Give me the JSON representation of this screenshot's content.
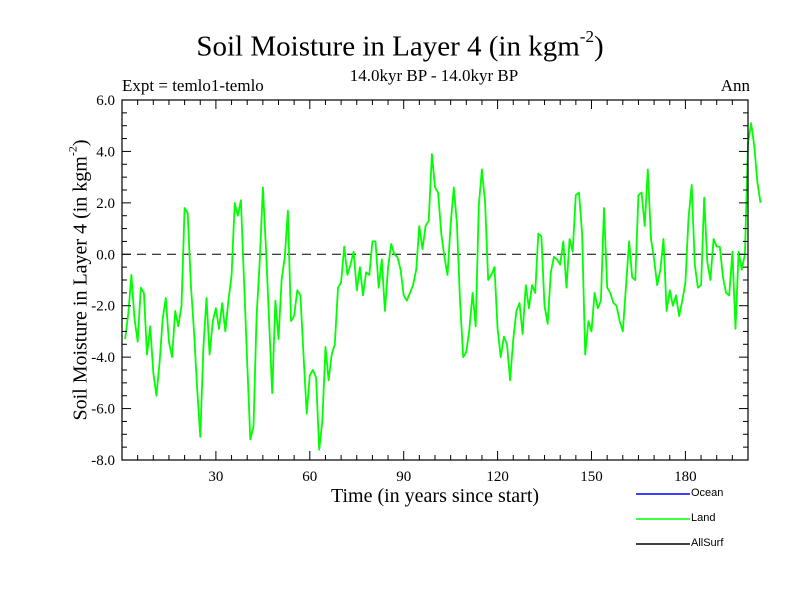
{
  "chart_data": {
    "type": "line",
    "title": "Soil Moisture in Layer 4 (in kgm",
    "title_sup": "-2",
    "title_close": ")",
    "subtitle": "14.0kyr BP - 14.0kyr BP",
    "expt_label": "Expt = temlo1-temlo",
    "period_label": "Ann",
    "xlabel": "Time (in years since start)",
    "ylabel": "Soil Moisture in Layer 4 (in kgm",
    "ylabel_sup": "-2",
    "ylabel_close": ")",
    "xlim": [
      0,
      200
    ],
    "ylim": [
      -8,
      6
    ],
    "xticks": [
      30,
      60,
      90,
      120,
      150,
      180
    ],
    "yticks": [
      6,
      4,
      2,
      0,
      -2,
      -4,
      -6,
      -8
    ],
    "ytick_labels": [
      "6.0",
      "4.0",
      "2.0",
      "0.0",
      "-2.0",
      "-4.0",
      "-6.0",
      "-8.0"
    ],
    "zero_line": 0,
    "series": [
      {
        "name": "Ocean",
        "color": "#0000ff",
        "values": []
      },
      {
        "name": "AllSurf",
        "color": "#000000",
        "values": []
      },
      {
        "name": "Land",
        "color": "#00ff00",
        "x_start": 1,
        "x_step": 1,
        "values": [
          -3.3,
          -2.3,
          -0.8,
          -2.5,
          -3.4,
          -1.3,
          -1.5,
          -3.9,
          -2.8,
          -4.6,
          -5.5,
          -4.2,
          -2.5,
          -1.7,
          -3.4,
          -4.0,
          -2.2,
          -2.8,
          -2.0,
          1.8,
          1.6,
          -1.2,
          -3.0,
          -5.2,
          -7.1,
          -3.6,
          -1.7,
          -3.9,
          -2.6,
          -2.1,
          -2.9,
          -1.9,
          -3.0,
          -1.8,
          -0.8,
          2.0,
          1.5,
          2.1,
          -1.1,
          -4.2,
          -7.2,
          -6.7,
          -2.4,
          -0.3,
          2.6,
          0.2,
          -2.6,
          -5.4,
          -1.8,
          -3.3,
          -1.0,
          -0.1,
          1.7,
          -2.6,
          -2.4,
          -1.4,
          -1.6,
          -3.9,
          -6.2,
          -4.7,
          -4.5,
          -4.8,
          -7.6,
          -6.5,
          -3.6,
          -4.9,
          -3.9,
          -3.5,
          -1.3,
          -1.1,
          0.3,
          -0.8,
          -0.4,
          0.1,
          -1.4,
          -0.5,
          -1.6,
          -0.7,
          -0.8,
          0.5,
          0.5,
          -1.3,
          -0.2,
          -2.2,
          -0.5,
          0.4,
          0.0,
          -0.1,
          -0.6,
          -1.6,
          -1.8,
          -1.5,
          -1.2,
          -0.6,
          1.1,
          0.2,
          1.1,
          1.3,
          3.9,
          2.6,
          2.4,
          0.8,
          -0.1,
          -0.8,
          1.2,
          2.6,
          1.2,
          -1.8,
          -4.0,
          -3.8,
          -2.9,
          -1.5,
          -2.8,
          1.9,
          3.3,
          2.0,
          -1.0,
          -0.8,
          -0.5,
          -2.9,
          -4.0,
          -3.2,
          -3.5,
          -4.9,
          -3.3,
          -2.2,
          -1.9,
          -3.1,
          -1.2,
          -2.1,
          -1.2,
          -1.5,
          0.8,
          0.7,
          -2.0,
          -2.7,
          -0.7,
          -0.1,
          -0.2,
          -0.4,
          0.5,
          -1.3,
          0.6,
          0.1,
          2.3,
          2.4,
          0.8,
          -3.9,
          -2.6,
          -3.0,
          -1.5,
          -2.1,
          -1.8,
          1.8,
          -1.3,
          -1.5,
          -1.9,
          -2.0,
          -2.6,
          -3.0,
          -1.3,
          0.5,
          -0.9,
          -1.0,
          2.3,
          2.4,
          1.1,
          3.3,
          0.6,
          -0.2,
          -1.2,
          -0.6,
          0.6,
          -2.2,
          -1.4,
          -2.0,
          -1.6,
          -2.4,
          -1.8,
          -1.1,
          1.4,
          2.7,
          -0.4,
          -1.3,
          -1.2,
          2.2,
          -0.3,
          -1.0,
          0.6,
          0.3,
          0.3,
          -0.9,
          -1.5,
          -1.6,
          0.1,
          -2.9,
          0.1,
          -0.6,
          0.0,
          4.3,
          5.1,
          4.2,
          2.8,
          2.0
        ]
      }
    ]
  }
}
